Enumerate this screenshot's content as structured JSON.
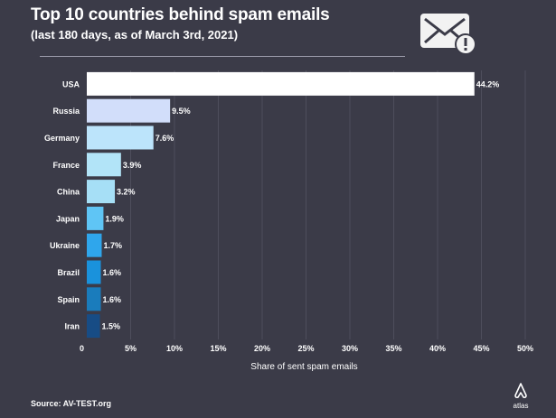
{
  "header": {
    "title": "Top 10 countries behind spam emails",
    "subtitle": "(last 180 days, as of March 3rd, 2021)"
  },
  "footer": {
    "source": "Source: AV-TEST.org",
    "logo_text": "atlas"
  },
  "icons": {
    "mail": "envelope-warning-icon",
    "logo": "atlas-logo-icon"
  },
  "colors": {
    "background": "#3b3b48",
    "text": "#ffffff",
    "gridline": "#4e4e5c",
    "bars": [
      "#ffffff",
      "#d2defa",
      "#bce4fb",
      "#b2e4f8",
      "#a6dff6",
      "#5fc5f5",
      "#2fa6ec",
      "#1a92dc",
      "#1a7cbc",
      "#174c85"
    ]
  },
  "chart_data": {
    "type": "bar",
    "orientation": "horizontal",
    "categories": [
      "USA",
      "Russia",
      "Germany",
      "France",
      "China",
      "Japan",
      "Ukraine",
      "Brazil",
      "Spain",
      "Iran"
    ],
    "values": [
      44.2,
      9.5,
      7.6,
      3.9,
      3.2,
      1.9,
      1.7,
      1.6,
      1.6,
      1.5
    ],
    "value_labels": [
      "44.2%",
      "9.5%",
      "7.6%",
      "3.9%",
      "3.2%",
      "1.9%",
      "1.7%",
      "1.6%",
      "1.6%",
      "1.5%"
    ],
    "xlim": [
      0,
      50
    ],
    "xticks": [
      0,
      5,
      10,
      15,
      20,
      25,
      30,
      35,
      40,
      45,
      50
    ],
    "xtick_labels": [
      "0",
      "5%",
      "10%",
      "15%",
      "20%",
      "25%",
      "30%",
      "35%",
      "40%",
      "45%",
      "50%"
    ],
    "xlabel": "Share of sent spam emails",
    "grid": "vertical"
  }
}
